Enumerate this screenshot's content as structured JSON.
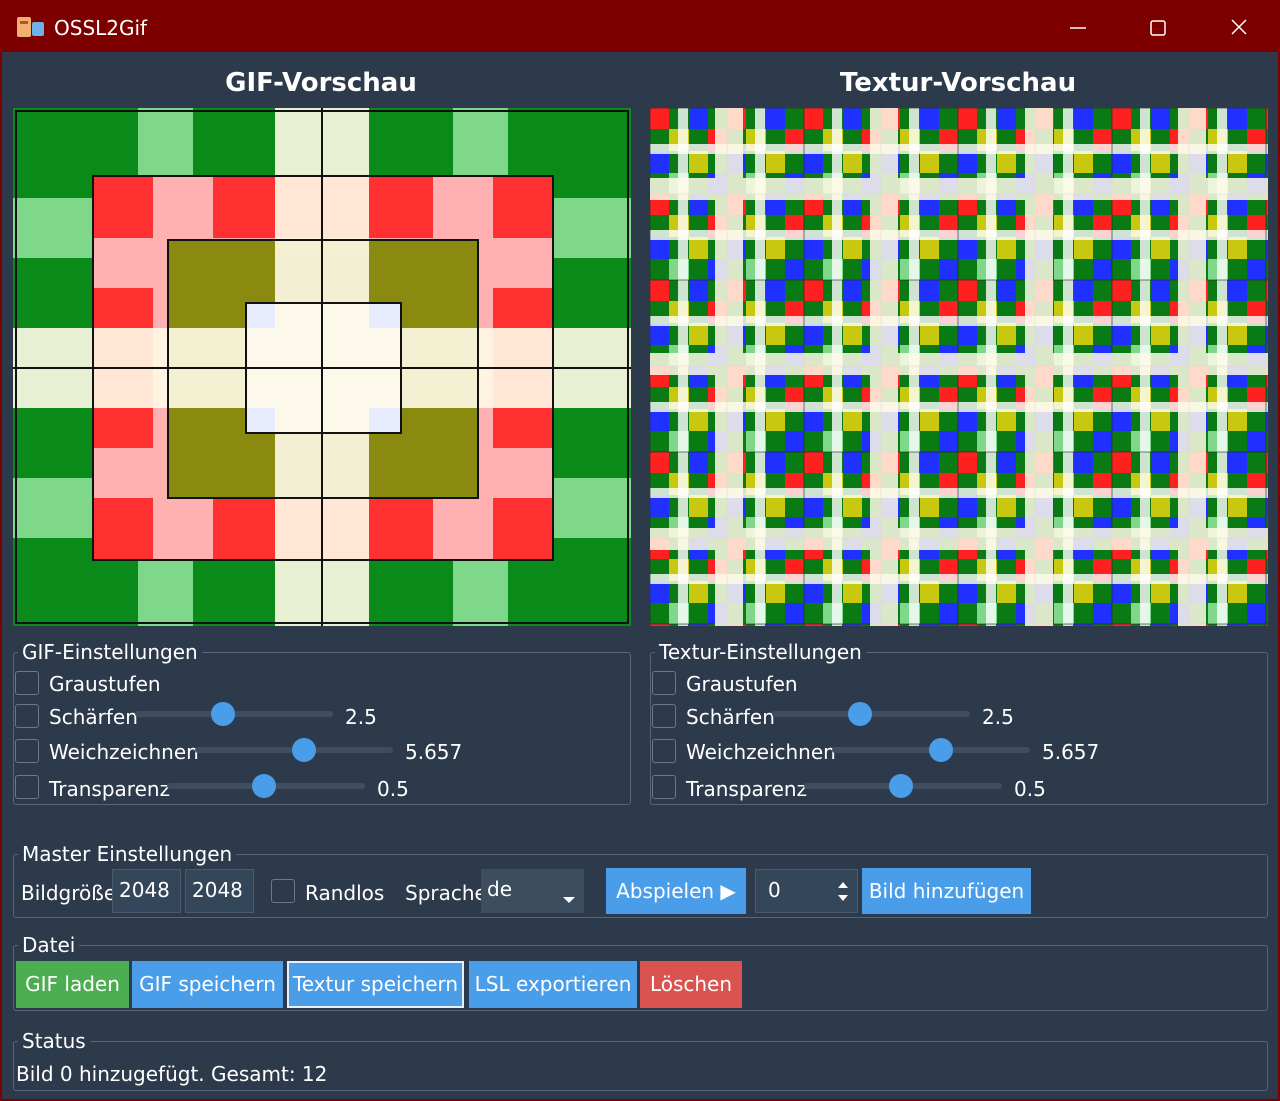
{
  "window": {
    "title": "OSSL2Gif"
  },
  "gif_preview": {
    "title": "GIF-Vorschau"
  },
  "texture_preview": {
    "title": "Textur-Vorschau"
  },
  "gif_settings": {
    "title": "GIF-Einstellungen",
    "grayscale": "Graustufen",
    "sharpen": {
      "label": "Schärfen",
      "value": 2.5
    },
    "blur": {
      "label": "Weichzeichnen",
      "value": 5.657
    },
    "transparency": {
      "label": "Transparenz",
      "value": 0.5
    }
  },
  "texture_settings": {
    "title": "Textur-Einstellungen",
    "grayscale": "Graustufen",
    "sharpen": {
      "label": "Schärfen",
      "value": 2.5
    },
    "blur": {
      "label": "Weichzeichnen",
      "value": 5.657
    },
    "transparency": {
      "label": "Transparenz",
      "value": 0.5
    }
  },
  "master": {
    "title": "Master Einstellungen",
    "size_label": "Bildgröße",
    "width": 2048,
    "height": 2048,
    "borderless": "Randlos",
    "language_label": "Sprache",
    "language": "de",
    "play": "Abspielen ▶",
    "frame_index": 0,
    "add_frame": "Bild hinzufügen"
  },
  "file": {
    "title": "Datei",
    "buttons": [
      "GIF laden",
      "GIF speichern",
      "Textur speichern",
      "LSL exportieren",
      "Löschen"
    ]
  },
  "status": {
    "title": "Status",
    "text": "Bild 0 hinzugefügt. Gesamt: 12"
  }
}
